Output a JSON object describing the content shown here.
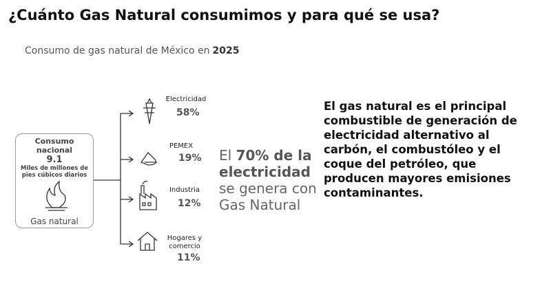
{
  "header": {
    "title": "¿Cuánto Gas Natural consumimos y para qué se usa?",
    "subtitle": "Consumo de gas natural de México en",
    "year": "2025"
  },
  "source_box": {
    "label": "Consumo nacional",
    "value": "9.1",
    "unit": "Miles de millones de pies cúbicos diarios",
    "caption": "Gas natural"
  },
  "branches": [
    {
      "label": "Electricidad",
      "share": "58%"
    },
    {
      "label": "PEMEX",
      "share": "19%"
    },
    {
      "label": "Industria",
      "share": "12%"
    },
    {
      "label": "Hogares y comercio",
      "share": "11%"
    }
  ],
  "highlight": {
    "lead": "El",
    "emphasis": "70% de la electricidad",
    "rest": "se genera con Gas Natural"
  },
  "statement": "El gas natural es el principal combustible de  generación de electricidad alternativo al carbón, el combustóleo y el coque del petróleo, que producen mayores emisiones contaminantes."
}
